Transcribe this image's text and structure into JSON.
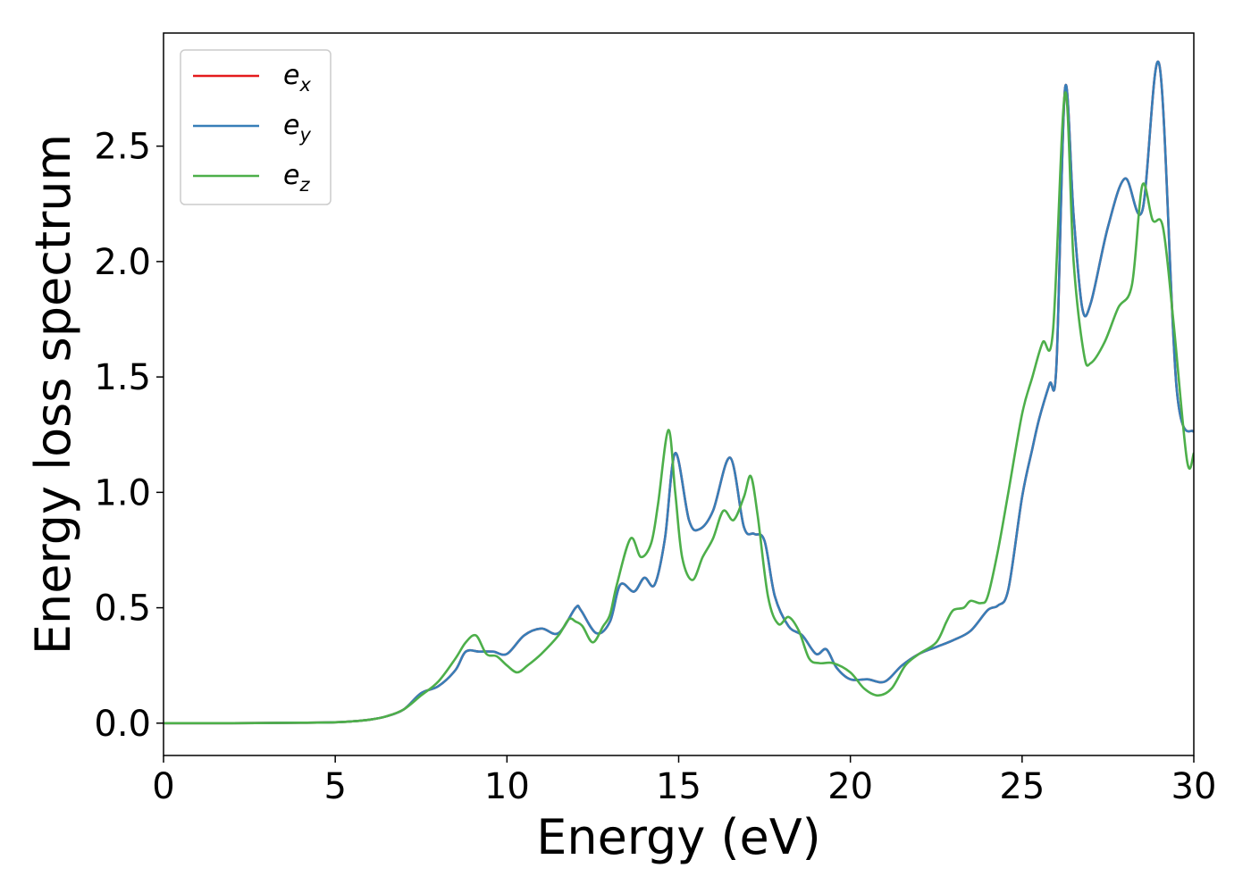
{
  "chart_data": {
    "type": "line",
    "xlabel": "Energy (eV)",
    "ylabel": "Energy loss spectrum",
    "xlim": [
      0,
      30
    ],
    "ylim": [
      -0.14,
      2.99
    ],
    "xticks": [
      0,
      5,
      10,
      15,
      20,
      25,
      30
    ],
    "xtick_labels": [
      "0",
      "5",
      "10",
      "15",
      "20",
      "25",
      "30"
    ],
    "yticks": [
      0.0,
      0.5,
      1.0,
      1.5,
      2.0,
      2.5
    ],
    "ytick_labels": [
      "0.0",
      "0.5",
      "1.0",
      "1.5",
      "2.0",
      "2.5"
    ],
    "grid": false,
    "legend_position": "top-left",
    "series": [
      {
        "name": "e",
        "subscript": "x",
        "color": "#e41a1c",
        "x": [
          0,
          2,
          4,
          5,
          5.5,
          6,
          6.5,
          7,
          7.5,
          8,
          8.5,
          8.8,
          9.2,
          9.6,
          10,
          10.5,
          11,
          11.5,
          12,
          12.15,
          12.6,
          13,
          13.3,
          13.7,
          14,
          14.3,
          14.6,
          14.9,
          15.3,
          15.6,
          16,
          16.5,
          16.9,
          17.2,
          17.5,
          17.8,
          18.2,
          18.6,
          19,
          19.3,
          19.6,
          20,
          20.5,
          21,
          21.5,
          22,
          22.5,
          23,
          23.5,
          24,
          24.3,
          24.6,
          25,
          25.3,
          25.5,
          25.8,
          26,
          26.25,
          26.5,
          26.75,
          27,
          27.5,
          28,
          28.5,
          29,
          29.5,
          30
        ],
        "values": [
          0,
          0,
          0.002,
          0.004,
          0.008,
          0.015,
          0.03,
          0.06,
          0.13,
          0.16,
          0.23,
          0.31,
          0.31,
          0.31,
          0.3,
          0.38,
          0.41,
          0.39,
          0.5,
          0.49,
          0.39,
          0.44,
          0.6,
          0.57,
          0.63,
          0.6,
          0.8,
          1.17,
          0.88,
          0.84,
          0.92,
          1.15,
          0.85,
          0.82,
          0.79,
          0.55,
          0.42,
          0.38,
          0.3,
          0.32,
          0.24,
          0.19,
          0.19,
          0.18,
          0.25,
          0.3,
          0.33,
          0.36,
          0.4,
          0.49,
          0.51,
          0.58,
          0.98,
          1.19,
          1.32,
          1.47,
          1.55,
          2.75,
          2.2,
          1.8,
          1.82,
          2.15,
          2.36,
          2.22,
          2.85,
          1.45,
          1.26
        ]
      },
      {
        "name": "e",
        "subscript": "y",
        "color": "#377eb8",
        "x": [
          0,
          2,
          4,
          5,
          5.5,
          6,
          6.5,
          7,
          7.5,
          8,
          8.5,
          8.8,
          9.2,
          9.6,
          10,
          10.5,
          11,
          11.5,
          12,
          12.15,
          12.6,
          13,
          13.3,
          13.7,
          14,
          14.3,
          14.6,
          14.9,
          15.3,
          15.6,
          16,
          16.5,
          16.9,
          17.2,
          17.5,
          17.8,
          18.2,
          18.6,
          19,
          19.3,
          19.6,
          20,
          20.5,
          21,
          21.5,
          22,
          22.5,
          23,
          23.5,
          24,
          24.3,
          24.6,
          25,
          25.3,
          25.5,
          25.8,
          26,
          26.25,
          26.5,
          26.75,
          27,
          27.5,
          28,
          28.5,
          29,
          29.5,
          30
        ],
        "values": [
          0,
          0,
          0.002,
          0.004,
          0.008,
          0.015,
          0.03,
          0.06,
          0.13,
          0.16,
          0.23,
          0.31,
          0.31,
          0.31,
          0.3,
          0.38,
          0.41,
          0.39,
          0.5,
          0.49,
          0.39,
          0.44,
          0.6,
          0.57,
          0.63,
          0.6,
          0.8,
          1.17,
          0.88,
          0.84,
          0.92,
          1.15,
          0.85,
          0.82,
          0.79,
          0.55,
          0.42,
          0.38,
          0.3,
          0.32,
          0.24,
          0.19,
          0.19,
          0.18,
          0.25,
          0.3,
          0.33,
          0.36,
          0.4,
          0.49,
          0.51,
          0.58,
          0.98,
          1.19,
          1.32,
          1.47,
          1.55,
          2.75,
          2.2,
          1.8,
          1.82,
          2.15,
          2.36,
          2.22,
          2.85,
          1.45,
          1.26
        ]
      },
      {
        "name": "e",
        "subscript": "z",
        "color": "#4daf4a",
        "x": [
          0,
          2,
          4,
          5,
          5.5,
          6,
          6.5,
          7,
          7.5,
          8,
          8.5,
          8.8,
          9.1,
          9.4,
          9.7,
          10,
          10.3,
          10.6,
          11,
          11.5,
          11.8,
          12,
          12.2,
          12.5,
          12.8,
          13,
          13.2,
          13.6,
          13.9,
          14.2,
          14.4,
          14.7,
          14.9,
          15.1,
          15.4,
          15.7,
          16,
          16.3,
          16.6,
          16.9,
          17.1,
          17.3,
          17.6,
          17.9,
          18.2,
          18.5,
          18.8,
          19.1,
          19.5,
          20,
          20.4,
          20.8,
          21.2,
          21.6,
          22,
          22.5,
          22.8,
          23,
          23.3,
          23.5,
          23.8,
          24,
          24.3,
          24.6,
          25,
          25.3,
          25.6,
          25.9,
          26.25,
          26.5,
          26.8,
          27,
          27.4,
          27.8,
          28.2,
          28.5,
          28.8,
          29.1,
          29.4,
          29.8,
          30
        ],
        "values": [
          0,
          0,
          0.002,
          0.004,
          0.008,
          0.015,
          0.03,
          0.06,
          0.12,
          0.18,
          0.28,
          0.35,
          0.38,
          0.3,
          0.29,
          0.25,
          0.22,
          0.25,
          0.3,
          0.38,
          0.45,
          0.44,
          0.42,
          0.35,
          0.42,
          0.47,
          0.6,
          0.8,
          0.72,
          0.78,
          0.95,
          1.27,
          1.0,
          0.72,
          0.62,
          0.72,
          0.8,
          0.92,
          0.88,
          0.98,
          1.07,
          0.9,
          0.55,
          0.43,
          0.46,
          0.4,
          0.28,
          0.26,
          0.26,
          0.22,
          0.15,
          0.12,
          0.15,
          0.25,
          0.3,
          0.35,
          0.44,
          0.49,
          0.5,
          0.53,
          0.52,
          0.55,
          0.75,
          1.0,
          1.34,
          1.5,
          1.65,
          1.7,
          2.73,
          2.0,
          1.6,
          1.56,
          1.65,
          1.8,
          1.9,
          2.33,
          2.18,
          2.15,
          1.75,
          1.14,
          1.17
        ]
      }
    ]
  }
}
